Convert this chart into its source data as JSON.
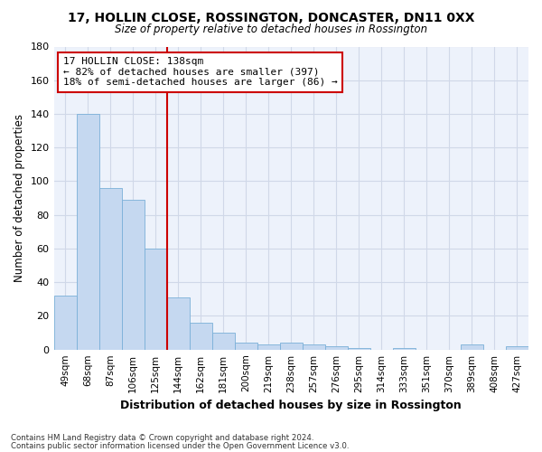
{
  "title1": "17, HOLLIN CLOSE, ROSSINGTON, DONCASTER, DN11 0XX",
  "title2": "Size of property relative to detached houses in Rossington",
  "xlabel": "Distribution of detached houses by size in Rossington",
  "ylabel": "Number of detached properties",
  "categories": [
    "49sqm",
    "68sqm",
    "87sqm",
    "106sqm",
    "125sqm",
    "144sqm",
    "162sqm",
    "181sqm",
    "200sqm",
    "219sqm",
    "238sqm",
    "257sqm",
    "276sqm",
    "295sqm",
    "314sqm",
    "333sqm",
    "351sqm",
    "370sqm",
    "389sqm",
    "408sqm",
    "427sqm"
  ],
  "values": [
    32,
    140,
    96,
    89,
    60,
    31,
    16,
    10,
    4,
    3,
    4,
    3,
    2,
    1,
    0,
    1,
    0,
    0,
    3,
    0,
    2
  ],
  "bar_color": "#c5d8f0",
  "bar_edge_color": "#7ab0d8",
  "vline_x_index": 5,
  "vline_color": "#cc0000",
  "annotation_text": "17 HOLLIN CLOSE: 138sqm\n← 82% of detached houses are smaller (397)\n18% of semi-detached houses are larger (86) →",
  "annotation_box_color": "#ffffff",
  "annotation_box_edge_color": "#cc0000",
  "ylim": [
    0,
    180
  ],
  "yticks": [
    0,
    20,
    40,
    60,
    80,
    100,
    120,
    140,
    160,
    180
  ],
  "grid_color": "#d0d8e8",
  "background_color": "#edf2fb",
  "footnote1": "Contains HM Land Registry data © Crown copyright and database right 2024.",
  "footnote2": "Contains public sector information licensed under the Open Government Licence v3.0."
}
